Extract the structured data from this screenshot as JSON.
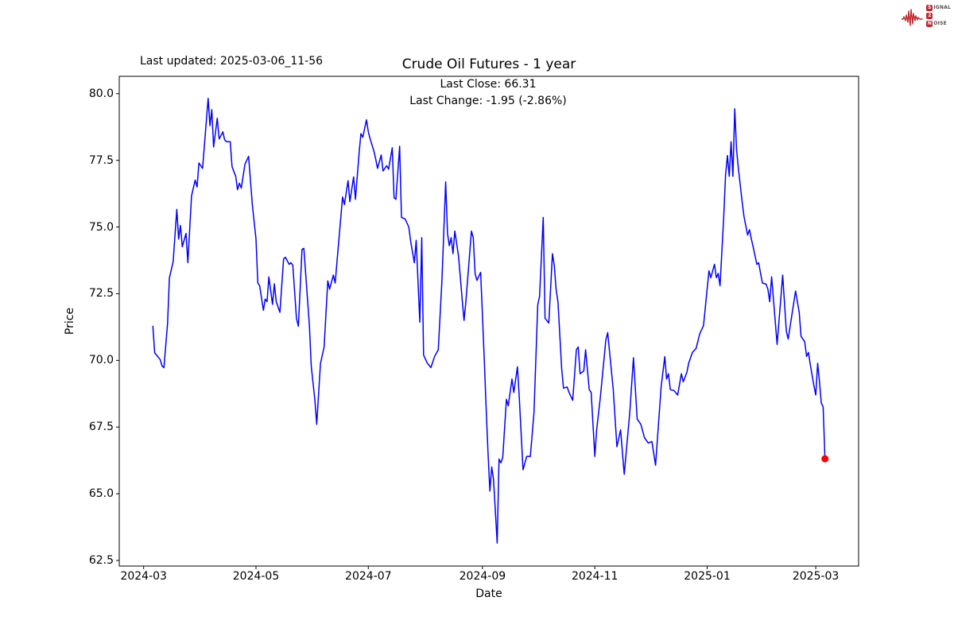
{
  "header": {
    "last_updated": "Last updated: 2025-03-06_11-56",
    "title": "Crude Oil Futures - 1 year",
    "annotation_line1": "Last Close: 66.31",
    "annotation_line2": "Last Change: -1.95 (-2.86%)"
  },
  "logo": {
    "word1_initial": "S",
    "word1_rest": "IGNAL",
    "word2_initial": "2",
    "word2_rest": "",
    "word3_initial": "N",
    "word3_rest": "OISE",
    "accent_color": "#c0272d"
  },
  "chart_data": {
    "type": "line",
    "title": "Crude Oil Futures - 1 year",
    "xlabel": "Date",
    "ylabel": "Price",
    "x_unit": "calendar days since 2024-03-06",
    "start_date": "2024-03-06",
    "end_date": "2025-03-06",
    "x_tick_labels": [
      "2024-03",
      "2024-05",
      "2024-07",
      "2024-09",
      "2024-11",
      "2025-01",
      "2025-03"
    ],
    "x_tick_days": [
      -5,
      56,
      117,
      179,
      240,
      301,
      360
    ],
    "y_ticks": [
      62.5,
      65.0,
      67.5,
      70.0,
      72.5,
      75.0,
      77.5,
      80.0
    ],
    "xlim": [
      -18.25,
      383.25
    ],
    "ylim": [
      62.29,
      80.65
    ],
    "grid": false,
    "line_color": "#0000ff",
    "line_width": 1.5,
    "last_point_color": "#ff0000",
    "last_close": 66.31,
    "last_change": -1.95,
    "last_change_pct": -2.86,
    "series": [
      {
        "name": "Crude Oil Futures price",
        "points": [
          [
            0,
            71.28
          ],
          [
            1,
            70.28
          ],
          [
            2,
            70.2
          ],
          [
            4,
            70.03
          ],
          [
            5,
            69.79
          ],
          [
            6,
            69.73
          ],
          [
            8,
            71.4
          ],
          [
            9,
            73.1
          ],
          [
            11,
            73.7
          ],
          [
            13,
            75.66
          ],
          [
            14,
            74.55
          ],
          [
            15,
            75.06
          ],
          [
            16,
            74.26
          ],
          [
            18,
            74.76
          ],
          [
            19,
            73.66
          ],
          [
            21,
            76.16
          ],
          [
            23,
            76.76
          ],
          [
            24,
            76.5
          ],
          [
            25,
            77.4
          ],
          [
            27,
            77.2
          ],
          [
            30,
            79.82
          ],
          [
            31,
            78.8
          ],
          [
            32,
            79.4
          ],
          [
            33,
            78.0
          ],
          [
            35,
            79.08
          ],
          [
            36,
            78.3
          ],
          [
            38,
            78.57
          ],
          [
            39,
            78.27
          ],
          [
            40,
            78.2
          ],
          [
            42,
            78.2
          ],
          [
            43,
            77.26
          ],
          [
            45,
            76.9
          ],
          [
            46,
            76.4
          ],
          [
            47,
            76.64
          ],
          [
            48,
            76.46
          ],
          [
            50,
            77.35
          ],
          [
            52,
            77.65
          ],
          [
            54,
            75.84
          ],
          [
            56,
            74.55
          ],
          [
            57,
            72.9
          ],
          [
            58,
            72.8
          ],
          [
            60,
            71.88
          ],
          [
            61,
            72.3
          ],
          [
            62,
            72.2
          ],
          [
            63,
            73.13
          ],
          [
            65,
            72.1
          ],
          [
            66,
            72.87
          ],
          [
            67,
            72.2
          ],
          [
            69,
            71.8
          ],
          [
            71,
            73.8
          ],
          [
            72,
            73.87
          ],
          [
            74,
            73.6
          ],
          [
            75,
            73.66
          ],
          [
            76,
            73.57
          ],
          [
            78,
            71.58
          ],
          [
            79,
            71.28
          ],
          [
            81,
            74.16
          ],
          [
            82,
            74.2
          ],
          [
            84,
            72.3
          ],
          [
            85,
            71.3
          ],
          [
            86,
            69.79
          ],
          [
            88,
            68.5
          ],
          [
            89,
            67.6
          ],
          [
            91,
            69.88
          ],
          [
            93,
            70.5
          ],
          [
            95,
            72.98
          ],
          [
            96,
            72.67
          ],
          [
            98,
            73.2
          ],
          [
            99,
            72.9
          ],
          [
            101,
            74.5
          ],
          [
            103,
            76.13
          ],
          [
            104,
            75.84
          ],
          [
            106,
            76.74
          ],
          [
            107,
            75.95
          ],
          [
            109,
            76.88
          ],
          [
            110,
            76.04
          ],
          [
            112,
            77.77
          ],
          [
            113,
            78.5
          ],
          [
            114,
            78.36
          ],
          [
            116,
            79.02
          ],
          [
            117,
            78.57
          ],
          [
            118,
            78.3
          ],
          [
            120,
            77.86
          ],
          [
            121,
            77.56
          ],
          [
            122,
            77.2
          ],
          [
            124,
            77.7
          ],
          [
            125,
            77.1
          ],
          [
            127,
            77.3
          ],
          [
            128,
            77.17
          ],
          [
            130,
            77.97
          ],
          [
            131,
            76.1
          ],
          [
            132,
            76.04
          ],
          [
            134,
            78.03
          ],
          [
            135,
            75.36
          ],
          [
            137,
            75.3
          ],
          [
            139,
            75.0
          ],
          [
            140,
            74.46
          ],
          [
            142,
            73.66
          ],
          [
            143,
            74.5
          ],
          [
            145,
            71.43
          ],
          [
            146,
            74.6
          ],
          [
            147,
            70.2
          ],
          [
            149,
            69.9
          ],
          [
            151,
            69.73
          ],
          [
            153,
            70.15
          ],
          [
            155,
            70.4
          ],
          [
            157,
            73.0
          ],
          [
            159,
            76.69
          ],
          [
            160,
            74.76
          ],
          [
            161,
            74.3
          ],
          [
            162,
            74.6
          ],
          [
            163,
            74.0
          ],
          [
            164,
            74.85
          ],
          [
            166,
            73.9
          ],
          [
            168,
            72.27
          ],
          [
            169,
            71.5
          ],
          [
            170,
            72.2
          ],
          [
            173,
            74.85
          ],
          [
            174,
            74.6
          ],
          [
            175,
            73.26
          ],
          [
            176,
            73.0
          ],
          [
            178,
            73.3
          ],
          [
            180,
            70.0
          ],
          [
            181,
            68.2
          ],
          [
            182,
            66.58
          ],
          [
            183,
            65.1
          ],
          [
            184,
            66.0
          ],
          [
            185,
            65.53
          ],
          [
            187,
            63.15
          ],
          [
            188,
            66.3
          ],
          [
            189,
            66.16
          ],
          [
            190,
            66.37
          ],
          [
            192,
            68.54
          ],
          [
            193,
            68.3
          ],
          [
            195,
            69.3
          ],
          [
            196,
            68.8
          ],
          [
            198,
            69.76
          ],
          [
            199,
            68.6
          ],
          [
            201,
            65.9
          ],
          [
            203,
            66.4
          ],
          [
            205,
            66.4
          ],
          [
            207,
            68.05
          ],
          [
            209,
            72.08
          ],
          [
            210,
            72.4
          ],
          [
            212,
            75.36
          ],
          [
            213,
            71.58
          ],
          [
            215,
            71.4
          ],
          [
            217,
            74.0
          ],
          [
            218,
            73.56
          ],
          [
            219,
            72.67
          ],
          [
            220,
            72.17
          ],
          [
            222,
            69.7
          ],
          [
            223,
            68.96
          ],
          [
            225,
            69.0
          ],
          [
            226,
            68.8
          ],
          [
            228,
            68.5
          ],
          [
            230,
            70.4
          ],
          [
            231,
            70.5
          ],
          [
            232,
            69.5
          ],
          [
            234,
            69.6
          ],
          [
            235,
            70.4
          ],
          [
            237,
            68.9
          ],
          [
            238,
            68.8
          ],
          [
            240,
            66.4
          ],
          [
            241,
            67.4
          ],
          [
            243,
            68.6
          ],
          [
            246,
            70.77
          ],
          [
            247,
            71.04
          ],
          [
            250,
            68.9
          ],
          [
            252,
            66.76
          ],
          [
            254,
            67.4
          ],
          [
            256,
            65.73
          ],
          [
            259,
            68.06
          ],
          [
            261,
            70.1
          ],
          [
            263,
            67.8
          ],
          [
            265,
            67.6
          ],
          [
            267,
            67.1
          ],
          [
            269,
            66.9
          ],
          [
            271,
            66.96
          ],
          [
            273,
            66.07
          ],
          [
            276,
            69.0
          ],
          [
            278,
            70.14
          ],
          [
            279,
            69.3
          ],
          [
            280,
            69.5
          ],
          [
            281,
            68.9
          ],
          [
            283,
            68.87
          ],
          [
            285,
            68.7
          ],
          [
            287,
            69.5
          ],
          [
            288,
            69.2
          ],
          [
            290,
            69.55
          ],
          [
            291,
            69.9
          ],
          [
            293,
            70.3
          ],
          [
            295,
            70.45
          ],
          [
            297,
            71.0
          ],
          [
            299,
            71.3
          ],
          [
            302,
            73.36
          ],
          [
            303,
            73.1
          ],
          [
            305,
            73.6
          ],
          [
            306,
            73.1
          ],
          [
            307,
            73.26
          ],
          [
            308,
            72.8
          ],
          [
            310,
            75.35
          ],
          [
            311,
            76.93
          ],
          [
            312,
            77.68
          ],
          [
            313,
            76.9
          ],
          [
            314,
            78.2
          ],
          [
            315,
            76.9
          ],
          [
            316,
            79.43
          ],
          [
            317,
            77.9
          ],
          [
            318,
            77.17
          ],
          [
            320,
            75.95
          ],
          [
            321,
            75.4
          ],
          [
            323,
            74.7
          ],
          [
            324,
            74.9
          ],
          [
            325,
            74.55
          ],
          [
            326,
            74.25
          ],
          [
            328,
            73.6
          ],
          [
            329,
            73.66
          ],
          [
            330,
            73.26
          ],
          [
            331,
            72.9
          ],
          [
            333,
            72.86
          ],
          [
            334,
            72.67
          ],
          [
            335,
            72.2
          ],
          [
            336,
            73.13
          ],
          [
            339,
            70.6
          ],
          [
            342,
            73.2
          ],
          [
            344,
            71.1
          ],
          [
            345,
            70.8
          ],
          [
            349,
            72.6
          ],
          [
            351,
            71.8
          ],
          [
            352,
            70.9
          ],
          [
            354,
            70.7
          ],
          [
            355,
            70.15
          ],
          [
            356,
            70.3
          ],
          [
            357,
            69.85
          ],
          [
            359,
            69.05
          ],
          [
            360,
            68.7
          ],
          [
            361,
            69.89
          ],
          [
            362,
            69.2
          ],
          [
            363,
            68.4
          ],
          [
            364,
            68.26
          ],
          [
            365,
            66.31
          ]
        ]
      }
    ]
  }
}
